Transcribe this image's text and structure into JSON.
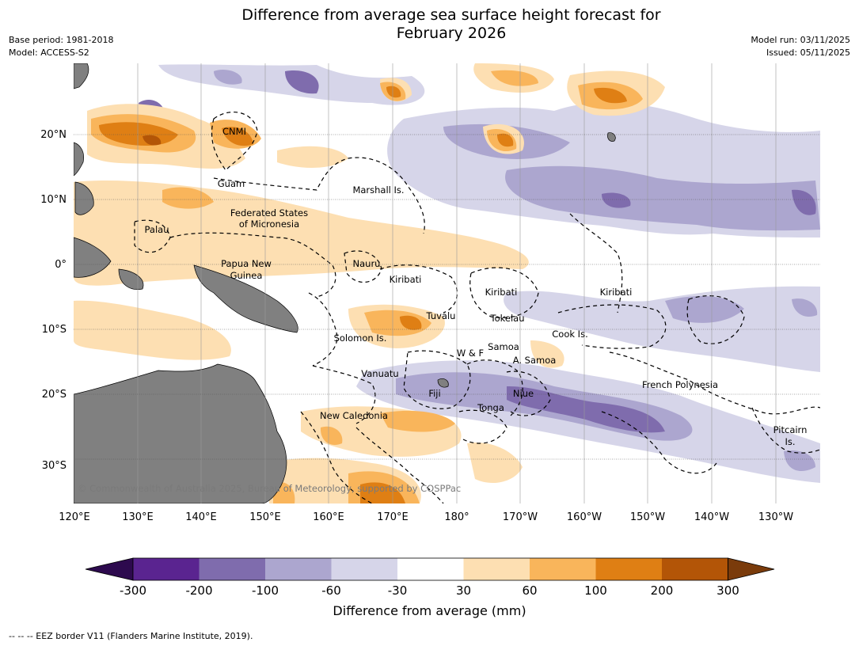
{
  "title_line1": "Difference from average sea surface height forecast for",
  "title_line2": "February 2026",
  "meta_left": [
    "Base period: 1981-2018",
    "Model: ACCESS-S2"
  ],
  "meta_right": [
    "Model run: 03/11/2025",
    "Issued: 05/11/2025"
  ],
  "lon_labels": [
    "120°E",
    "130°E",
    "140°E",
    "150°E",
    "160°E",
    "170°E",
    "180°",
    "170°W",
    "160°W",
    "150°W",
    "140°W",
    "130°W"
  ],
  "lat_labels": [
    "20°N",
    "10°N",
    "0°",
    "10°S",
    "20°S",
    "30°S"
  ],
  "region_labels": [
    "CNMI",
    "Guam",
    "Marshall Is.",
    "Federated States",
    "of Micronesia",
    "Palau",
    "Papua New",
    "Guinea",
    "Nauru",
    "Kiribati",
    "Kiribati",
    "Kiribati",
    "Tuvalu",
    "Tokelau",
    "Cook Is.",
    "Solomon Is.",
    "Samoa",
    "W & F",
    "A. Samoa",
    "Vanuatu",
    "Fiji",
    "Niue",
    "Tonga",
    "French Polynesia",
    "New Caledonia",
    "Pitcairn",
    "Is."
  ],
  "copyright": "© Commonwealth of Australia 2025, Bureau of Meteorology, supported by COSPPac",
  "colorbar": {
    "ticks": [
      "-300",
      "-200",
      "-100",
      "-60",
      "-30",
      "30",
      "60",
      "100",
      "200",
      "300"
    ],
    "colors": [
      "#2d0a4e",
      "#5a2490",
      "#7f6cad",
      "#aca6cf",
      "#d6d5e9",
      "#ffffff",
      "#fddfb2",
      "#f9b55b",
      "#df7f14",
      "#b35507",
      "#7a3b0b"
    ],
    "label": "Difference from average (mm)"
  },
  "footer": "--  --  -- EEZ border V11 (Flanders Marine Institute, 2019).",
  "palette": {
    "land": "#808080",
    "grid": "#9a9a9a"
  }
}
